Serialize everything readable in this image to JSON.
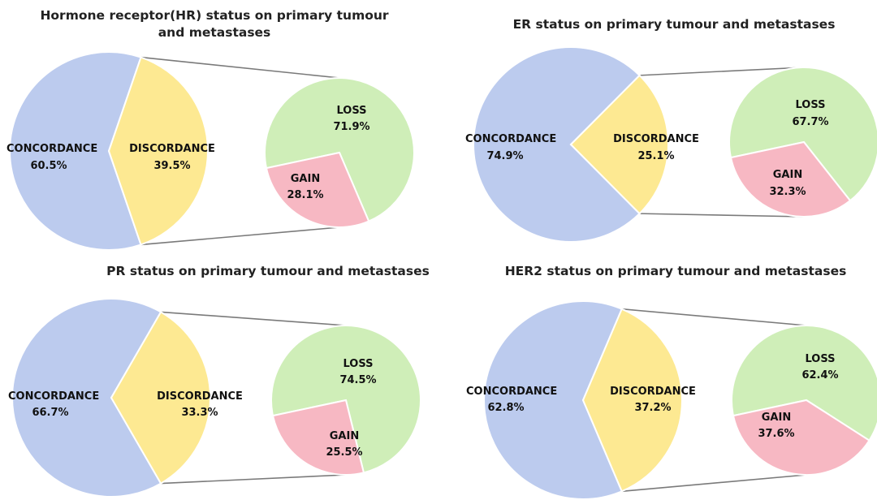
{
  "colors": {
    "concordance": "#bccbee",
    "discordance": "#fde992",
    "loss": "#cfeeb8",
    "gain": "#f7b8c3",
    "connector": "#7a7a7a",
    "text": "#111111"
  },
  "chart_data": [
    {
      "type": "pie",
      "title_lines": [
        "Hormone receptor(HR) status on primary tumour",
        "and metastases"
      ],
      "main": {
        "slices": [
          {
            "label": "CONCORDANCE",
            "value": 60.5,
            "display": "60.5%"
          },
          {
            "label": "DISCORDANCE",
            "value": 39.5,
            "display": "39.5%"
          }
        ]
      },
      "breakdown": {
        "slices": [
          {
            "label": "LOSS",
            "value": 71.9,
            "display": "71.9%"
          },
          {
            "label": "GAIN",
            "value": 28.1,
            "display": "28.1%"
          }
        ]
      }
    },
    {
      "type": "pie",
      "title_lines": [
        "ER status on primary tumour and metastases"
      ],
      "main": {
        "slices": [
          {
            "label": "CONCORDANCE",
            "value": 74.9,
            "display": "74.9%"
          },
          {
            "label": "DISCORDANCE",
            "value": 25.1,
            "display": "25.1%"
          }
        ]
      },
      "breakdown": {
        "slices": [
          {
            "label": "LOSS",
            "value": 67.7,
            "display": "67.7%"
          },
          {
            "label": "GAIN",
            "value": 32.3,
            "display": "32.3%"
          }
        ]
      }
    },
    {
      "type": "pie",
      "title_lines": [
        "PR status on primary tumour and metastases"
      ],
      "main": {
        "slices": [
          {
            "label": "CONCORDANCE",
            "value": 66.7,
            "display": "66.7%"
          },
          {
            "label": "DISCORDANCE",
            "value": 33.3,
            "display": "33.3%"
          }
        ]
      },
      "breakdown": {
        "slices": [
          {
            "label": "LOSS",
            "value": 74.5,
            "display": "74.5%"
          },
          {
            "label": "GAIN",
            "value": 25.5,
            "display": "25.5%"
          }
        ]
      }
    },
    {
      "type": "pie",
      "title_lines": [
        "HER2 status on primary tumour and metastases"
      ],
      "main": {
        "slices": [
          {
            "label": "CONCORDANCE",
            "value": 62.8,
            "display": "62.8%"
          },
          {
            "label": "DISCORDANCE",
            "value": 37.2,
            "display": "37.2%"
          }
        ]
      },
      "breakdown": {
        "slices": [
          {
            "label": "LOSS",
            "value": 62.4,
            "display": "62.4%"
          },
          {
            "label": "GAIN",
            "value": 37.6,
            "display": "37.6%"
          }
        ]
      }
    }
  ]
}
